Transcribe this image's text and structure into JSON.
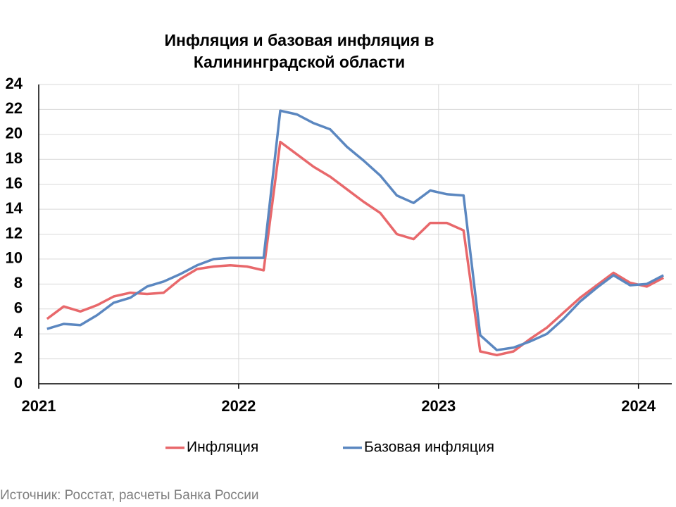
{
  "chart_data": {
    "type": "line",
    "title": "Инфляция и базовая инфляция в Калининградской области",
    "source": "Источник: Росстат, расчеты Банка России",
    "categories": [
      "2021",
      null,
      null,
      null,
      null,
      null,
      null,
      null,
      null,
      null,
      null,
      null,
      "2022",
      null,
      null,
      null,
      null,
      null,
      null,
      null,
      null,
      null,
      null,
      null,
      "2023",
      null,
      null,
      null,
      null,
      null,
      null,
      null,
      null,
      null,
      null,
      null,
      "2024",
      null
    ],
    "series": [
      {
        "name": "Инфляция",
        "color": "#e8686b",
        "values": [
          5.2,
          6.2,
          5.8,
          6.3,
          7.0,
          7.3,
          7.2,
          7.3,
          8.4,
          9.2,
          9.4,
          9.5,
          9.4,
          9.1,
          19.4,
          18.4,
          17.4,
          16.6,
          15.6,
          14.6,
          13.7,
          12.0,
          11.6,
          12.9,
          12.9,
          12.3,
          2.6,
          2.3,
          2.6,
          3.6,
          4.5,
          5.7,
          6.9,
          7.9,
          8.9,
          8.1,
          7.8,
          8.5
        ]
      },
      {
        "name": "Базовая инфляция",
        "color": "#5b87c0",
        "values": [
          4.4,
          4.8,
          4.7,
          5.5,
          6.5,
          6.9,
          7.8,
          8.2,
          8.8,
          9.5,
          10.0,
          10.1,
          10.1,
          10.1,
          21.9,
          21.6,
          20.9,
          20.4,
          19.0,
          17.9,
          16.7,
          15.1,
          14.5,
          15.5,
          15.2,
          15.1,
          3.9,
          2.7,
          2.9,
          3.4,
          4.0,
          5.2,
          6.6,
          7.7,
          8.7,
          7.9,
          8.0,
          8.7
        ]
      }
    ],
    "ylim": [
      0,
      24
    ],
    "yticks": [
      0,
      2,
      4,
      6,
      8,
      10,
      12,
      14,
      16,
      18,
      20,
      22,
      24
    ],
    "grid": true,
    "legend": "bottom"
  }
}
